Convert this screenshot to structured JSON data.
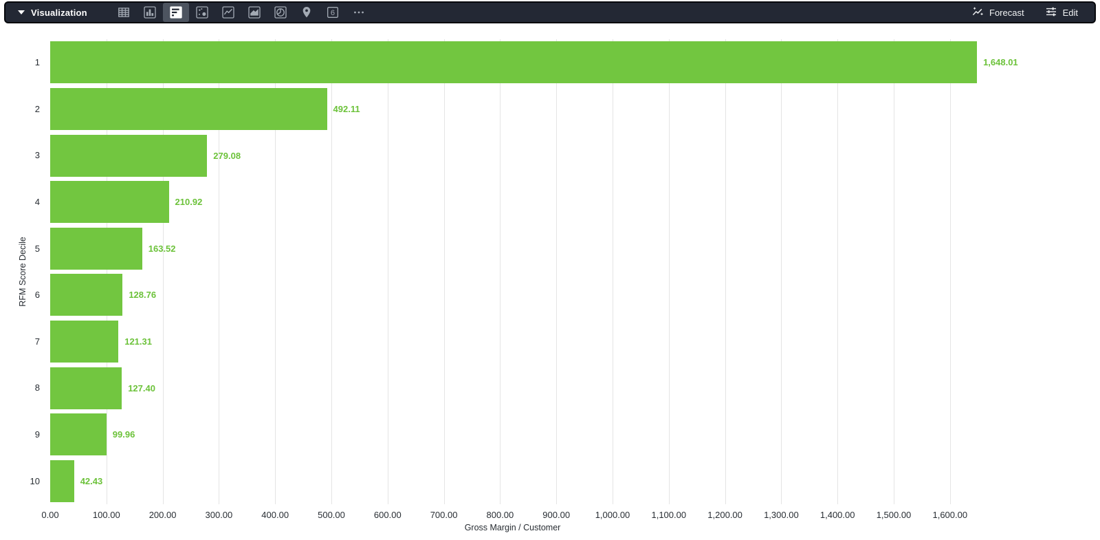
{
  "toolbar": {
    "panel_label": "Visualization",
    "chart_type_icons": [
      {
        "name": "table",
        "selected": false
      },
      {
        "name": "column-chart",
        "selected": false
      },
      {
        "name": "bar-chart-horizontal",
        "selected": true
      },
      {
        "name": "scatter",
        "selected": false
      },
      {
        "name": "line-chart",
        "selected": false
      },
      {
        "name": "area-chart",
        "selected": false
      },
      {
        "name": "pie-chart",
        "selected": false
      },
      {
        "name": "map-pin",
        "selected": false
      },
      {
        "name": "single-value",
        "selected": false,
        "glyph": "6"
      },
      {
        "name": "more",
        "selected": false
      }
    ],
    "forecast_label": "Forecast",
    "edit_label": "Edit"
  },
  "colors": {
    "bar": "#72c640",
    "value_label": "#6cc23a",
    "toolbar_bg": "#232834",
    "selected_tile": "#4d5460",
    "gridline": "#e4e4e4",
    "axis_text": "#282d33"
  },
  "chart_data": {
    "type": "bar",
    "orientation": "horizontal",
    "title": "",
    "xlabel": "Gross Margin / Customer",
    "ylabel": "RFM Score Decile",
    "categories": [
      "1",
      "2",
      "3",
      "4",
      "5",
      "6",
      "7",
      "8",
      "9",
      "10"
    ],
    "values": [
      1648.01,
      492.11,
      279.08,
      210.92,
      163.52,
      128.76,
      121.31,
      127.4,
      99.96,
      42.43
    ],
    "value_labels": [
      "1,648.01",
      "492.11",
      "279.08",
      "210.92",
      "163.52",
      "128.76",
      "121.31",
      "127.40",
      "99.96",
      "42.43"
    ],
    "x_ticks": [
      0,
      100,
      200,
      300,
      400,
      500,
      600,
      700,
      800,
      900,
      1000,
      1100,
      1200,
      1300,
      1400,
      1500,
      1600
    ],
    "x_tick_labels": [
      "0.00",
      "100.00",
      "200.00",
      "300.00",
      "400.00",
      "500.00",
      "600.00",
      "700.00",
      "800.00",
      "900.00",
      "1,000.00",
      "1,100.00",
      "1,200.00",
      "1,300.00",
      "1,400.00",
      "1,500.00",
      "1,600.00"
    ],
    "xlim": [
      0,
      1648.01
    ],
    "grid": true,
    "legend": false
  }
}
